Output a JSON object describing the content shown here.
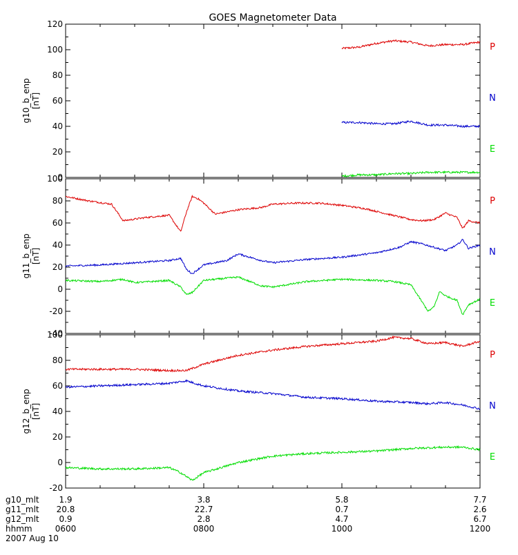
{
  "chart_data": {
    "type": "line",
    "title": "GOES Magnetometer Data",
    "x_range_hhmm": [
      "0600",
      "1200"
    ],
    "colors": {
      "P": "#dd0000",
      "N": "#0000cc",
      "E": "#00dd00",
      "axis": "#000000"
    },
    "panels": [
      {
        "ylabel": "g10_b_enp",
        "unit": "[nT]",
        "ylim": [
          0,
          120
        ],
        "yticks": [
          0,
          20,
          40,
          60,
          80,
          100,
          120
        ],
        "ytick_labels": [
          "0",
          "20",
          "40",
          "60",
          "80",
          "100",
          "120"
        ],
        "legend": [
          "P",
          "N",
          "E"
        ],
        "series": [
          {
            "name": "P",
            "x": [
              "1000",
              "1015",
              "1030",
              "1045",
              "1100",
              "1115",
              "1130",
              "1145",
              "1200"
            ],
            "values": [
              101,
              102,
              105,
              107,
              106,
              103,
              104,
              104,
              106
            ]
          },
          {
            "name": "N",
            "x": [
              "1000",
              "1015",
              "1030",
              "1045",
              "1100",
              "1115",
              "1130",
              "1145",
              "1200"
            ],
            "values": [
              43,
              43,
              42,
              42,
              44,
              41,
              41,
              40,
              40
            ]
          },
          {
            "name": "E",
            "x": [
              "1000",
              "1015",
              "1030",
              "1045",
              "1100",
              "1115",
              "1130",
              "1145",
              "1200"
            ],
            "values": [
              1,
              2,
              2,
              3,
              3,
              4,
              4,
              4,
              4
            ]
          }
        ]
      },
      {
        "ylabel": "g11_b_enp",
        "unit": "[nT]",
        "ylim": [
          -40,
          100
        ],
        "yticks": [
          -40,
          -20,
          0,
          20,
          40,
          60,
          80,
          100
        ],
        "ytick_labels": [
          "-40",
          "-20",
          "0",
          "20",
          "40",
          "60",
          "80",
          "100"
        ],
        "legend": [
          "P",
          "N",
          "E"
        ],
        "series": [
          {
            "name": "P",
            "x": [
              "0600",
              "0620",
              "0640",
              "0650",
              "0710",
              "0730",
              "0740",
              "0745",
              "0750",
              "0755",
              "0800",
              "0810",
              "0820",
              "0830",
              "0850",
              "0900",
              "0920",
              "0940",
              "1000",
              "1020",
              "1040",
              "1100",
              "1110",
              "1120",
              "1130",
              "1140",
              "1145",
              "1150",
              "1200"
            ],
            "values": [
              84,
              80,
              77,
              62,
              65,
              67,
              52,
              70,
              84,
              82,
              78,
              68,
              70,
              72,
              74,
              77,
              78,
              78,
              76,
              73,
              68,
              63,
              62,
              63,
              69,
              65,
              55,
              62,
              60
            ]
          },
          {
            "name": "N",
            "x": [
              "0600",
              "0630",
              "0700",
              "0730",
              "0740",
              "0745",
              "0750",
              "0800",
              "0820",
              "0830",
              "0850",
              "0900",
              "0930",
              "1000",
              "1030",
              "1050",
              "1100",
              "1110",
              "1120",
              "1130",
              "1140",
              "1145",
              "1150",
              "1200"
            ],
            "values": [
              21,
              22,
              24,
              26,
              28,
              18,
              14,
              22,
              26,
              32,
              26,
              24,
              27,
              29,
              33,
              38,
              43,
              41,
              38,
              35,
              40,
              45,
              37,
              40
            ]
          },
          {
            "name": "E",
            "x": [
              "0600",
              "0630",
              "0650",
              "0700",
              "0730",
              "0740",
              "0745",
              "0750",
              "0800",
              "0820",
              "0830",
              "0850",
              "0900",
              "0930",
              "1000",
              "1030",
              "1045",
              "1100",
              "1110",
              "1115",
              "1120",
              "1125",
              "1130",
              "1140",
              "1145",
              "1150",
              "1200"
            ],
            "values": [
              8,
              7,
              9,
              6,
              8,
              2,
              -5,
              -3,
              8,
              10,
              11,
              3,
              2,
              7,
              9,
              8,
              7,
              4,
              -12,
              -20,
              -16,
              -2,
              -6,
              -10,
              -23,
              -14,
              -9
            ]
          }
        ]
      },
      {
        "ylabel": "g12_b_enp",
        "unit": "[nT]",
        "ylim": [
          -20,
          100
        ],
        "yticks": [
          -20,
          0,
          20,
          40,
          60,
          80,
          100
        ],
        "ytick_labels": [
          "-20",
          "0",
          "20",
          "40",
          "60",
          "80",
          "100"
        ],
        "legend": [
          "P",
          "N",
          "E"
        ],
        "series": [
          {
            "name": "P",
            "x": [
              "0600",
              "0630",
              "0700",
              "0730",
              "0745",
              "0800",
              "0830",
              "0900",
              "0930",
              "1000",
              "1030",
              "1045",
              "1100",
              "1115",
              "1130",
              "1145",
              "1200"
            ],
            "values": [
              73,
              73,
              73,
              72,
              72,
              77,
              84,
              88,
              91,
              93,
              95,
              98,
              97,
              93,
              94,
              91,
              95
            ]
          },
          {
            "name": "N",
            "x": [
              "0600",
              "0630",
              "0700",
              "0730",
              "0745",
              "0800",
              "0830",
              "0900",
              "0930",
              "1000",
              "1030",
              "1100",
              "1115",
              "1130",
              "1145",
              "1200"
            ],
            "values": [
              59,
              60,
              61,
              62,
              64,
              60,
              56,
              54,
              51,
              50,
              48,
              47,
              46,
              47,
              45,
              42
            ]
          },
          {
            "name": "E",
            "x": [
              "0600",
              "0630",
              "0700",
              "0730",
              "0740",
              "0750",
              "0800",
              "0830",
              "0900",
              "0930",
              "1000",
              "1030",
              "1100",
              "1130",
              "1145",
              "1200"
            ],
            "values": [
              -4,
              -5,
              -5,
              -4,
              -8,
              -14,
              -8,
              0,
              5,
              7,
              8,
              9,
              11,
              12,
              12,
              10
            ]
          }
        ]
      }
    ],
    "footer": {
      "rows": [
        {
          "label": "g10_mlt",
          "values": [
            "1.9",
            "3.8",
            "5.8",
            "7.7"
          ]
        },
        {
          "label": "g11_mlt",
          "values": [
            "20.8",
            "22.7",
            "0.7",
            "2.6"
          ]
        },
        {
          "label": "g12_mlt",
          "values": [
            "0.9",
            "2.8",
            "4.7",
            "6.7"
          ]
        },
        {
          "label": "hhmm",
          "values": [
            "0600",
            "0800",
            "1000",
            "1200"
          ]
        }
      ],
      "date": "2007 Aug 10"
    }
  }
}
